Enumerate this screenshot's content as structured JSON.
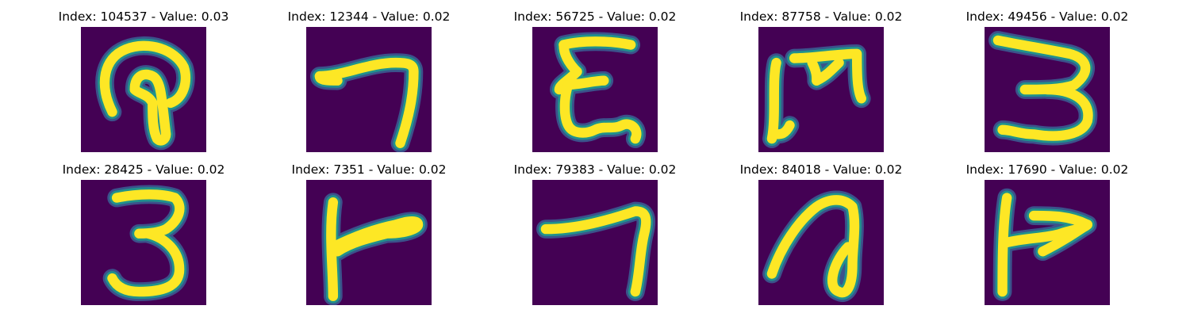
{
  "figure": {
    "colors": {
      "background": "#440154",
      "stroke_core": "#fde725",
      "stroke_mid": "#21918c",
      "stroke_edge": "#3b528b"
    },
    "panels": [
      {
        "title": "Index: 104537 - Value: 0.03",
        "glyph": "glyph-104537"
      },
      {
        "title": "Index: 12344 - Value: 0.02",
        "glyph": "glyph-12344"
      },
      {
        "title": "Index: 56725 - Value: 0.02",
        "glyph": "glyph-56725"
      },
      {
        "title": "Index: 87758 - Value: 0.02",
        "glyph": "glyph-87758"
      },
      {
        "title": "Index: 49456 - Value: 0.02",
        "glyph": "glyph-49456"
      },
      {
        "title": "Index: 28425 - Value: 0.02",
        "glyph": "glyph-28425"
      },
      {
        "title": "Index: 7351 - Value: 0.02",
        "glyph": "glyph-7351"
      },
      {
        "title": "Index: 79383 - Value: 0.02",
        "glyph": "glyph-79383"
      },
      {
        "title": "Index: 84018 - Value: 0.02",
        "glyph": "glyph-84018"
      },
      {
        "title": "Index: 17690 - Value: 0.02",
        "glyph": "glyph-17690"
      }
    ]
  }
}
